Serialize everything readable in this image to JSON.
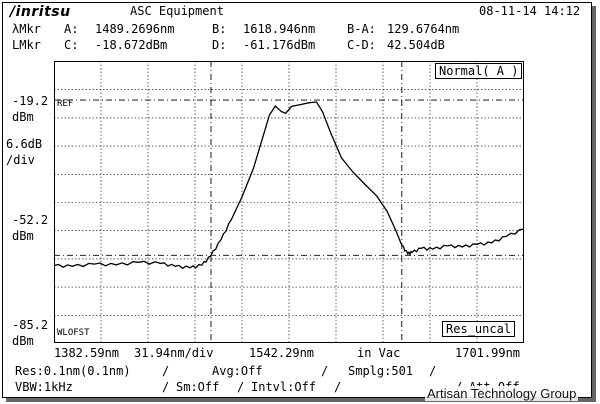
{
  "header": {
    "brand": "/inritsu",
    "equipment": "ASC Equipment",
    "datetime": "08-11-14 14:12"
  },
  "markers": {
    "wl_label": "λMkr",
    "lvl_label": "LMkr",
    "A_key": "A:",
    "A_val": "1489.2696nm",
    "B_key": "B:",
    "B_val": "1618.946nm",
    "BA_key": "B-A:",
    "BA_val": "129.6764nm",
    "C_key": "C:",
    "C_val": "-18.672dBm",
    "D_key": "D:",
    "D_val": "-61.176dBm",
    "CD_key": "C-D:",
    "CD_val": "42.504dB"
  },
  "yaxis": {
    "top": "-19.2",
    "scale_a": "6.6dB",
    "scale_b": "/div",
    "mid_a": "-52.2",
    "mid_b": "dBm",
    "bottom_a": "-85.2",
    "bottom_b": "dBm",
    "top_unit": "dBm"
  },
  "screen": {
    "mode": "Normal( A )",
    "ref": "REF",
    "wlofst": "WLOFST",
    "res_uncal": "Res_uncal"
  },
  "xaxis": {
    "start": "1382.59nm",
    "span_div": "31.94nm/div",
    "center": "1542.29nm",
    "medium": "in Vac",
    "stop": "1701.99nm"
  },
  "settings": {
    "res": "Res:0.1nm(0.1nm)",
    "slash1": "/",
    "avg": "Avg:Off",
    "slash2": "/",
    "smplg": "Smplg:501",
    "slash3": "/",
    "vbw": "VBW:1kHz",
    "slash4": "/",
    "sm": "Sm:Off",
    "slash5": "/",
    "intvl": "Intvl:Off",
    "slash6": "/",
    "slash7": "/",
    "att": "Att Off"
  },
  "watermark": "Artisan Technology Group",
  "trace": {
    "x_start_nm": 1382.59,
    "x_stop_nm": 1701.99,
    "y_top_dbm": -19.2,
    "y_bottom_dbm": -85.2,
    "marker_A_nm": 1489.2696,
    "marker_B_nm": 1618.946,
    "marker_C_dbm": -18.672,
    "marker_D_dbm": -61.176,
    "points_nm_dbm": [
      [
        1382.6,
        -64.0
      ],
      [
        1395,
        -64.2
      ],
      [
        1410,
        -63.6
      ],
      [
        1425,
        -63.8
      ],
      [
        1440,
        -63.1
      ],
      [
        1455,
        -63.4
      ],
      [
        1465,
        -64.2
      ],
      [
        1475,
        -64.6
      ],
      [
        1483,
        -63.9
      ],
      [
        1489,
        -61.4
      ],
      [
        1496,
        -57.0
      ],
      [
        1503,
        -51.5
      ],
      [
        1510,
        -45.5
      ],
      [
        1518,
        -37.5
      ],
      [
        1524,
        -29.5
      ],
      [
        1529,
        -22.8
      ],
      [
        1533,
        -20.3
      ],
      [
        1537,
        -21.8
      ],
      [
        1540,
        -22.3
      ],
      [
        1544,
        -20.4
      ],
      [
        1550,
        -19.9
      ],
      [
        1556,
        -19.4
      ],
      [
        1561,
        -19.2
      ],
      [
        1565,
        -21.8
      ],
      [
        1571,
        -28.0
      ],
      [
        1578,
        -34.5
      ],
      [
        1586,
        -38.5
      ],
      [
        1594,
        -41.8
      ],
      [
        1602,
        -45.0
      ],
      [
        1609,
        -49.2
      ],
      [
        1615,
        -54.5
      ],
      [
        1619,
        -58.5
      ],
      [
        1623,
        -60.8
      ],
      [
        1626,
        -60.4
      ],
      [
        1632,
        -59.3
      ],
      [
        1640,
        -59.5
      ],
      [
        1650,
        -58.6
      ],
      [
        1660,
        -58.9
      ],
      [
        1670,
        -58.2
      ],
      [
        1680,
        -57.8
      ],
      [
        1690,
        -56.0
      ],
      [
        1701.9,
        -54.0
      ]
    ]
  }
}
